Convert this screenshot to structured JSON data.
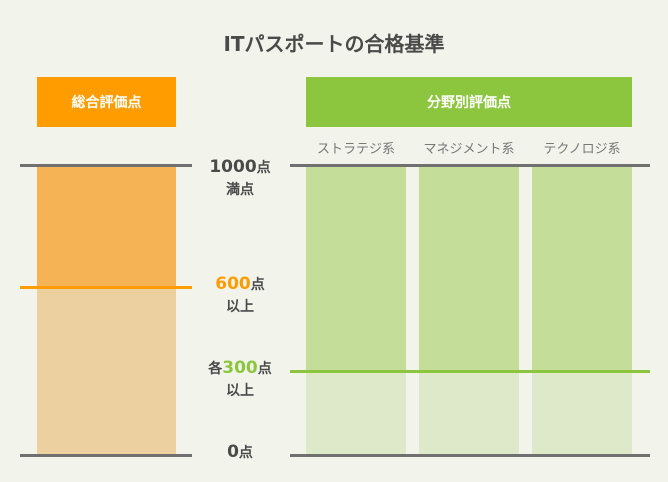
{
  "title": "ITパスポートの合格基準",
  "left_panel": {
    "header": "総合評価点",
    "color": "#ff9c00"
  },
  "right_panel": {
    "header": "分野別評価点",
    "color": "#8cc63f",
    "categories": [
      "ストラテジ系",
      "マネジメント系",
      "テクノロジ系"
    ]
  },
  "scale": {
    "max": {
      "number": "1000",
      "unit": "点",
      "note": "満点"
    },
    "total_pass": {
      "number": "600",
      "unit": "点",
      "note": "以上",
      "color": "#ff9c00"
    },
    "field_pass": {
      "prefix": "各",
      "number": "300",
      "unit": "点",
      "note": "以上",
      "color": "#8cc63f"
    },
    "min": {
      "number": "0",
      "unit": "点"
    }
  },
  "colors": {
    "line_gray": "#707070",
    "orange_upper": "#f5b356",
    "orange_lower": "#ecd0a0",
    "green_upper": "#c4de9a",
    "green_lower": "#dde9c8"
  }
}
